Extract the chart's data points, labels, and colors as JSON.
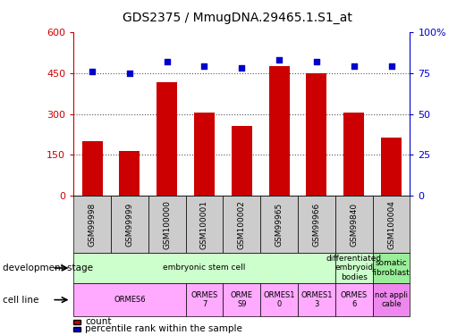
{
  "title": "GDS2375 / MmugDNA.29465.1.S1_at",
  "samples": [
    "GSM99998",
    "GSM99999",
    "GSM100000",
    "GSM100001",
    "GSM100002",
    "GSM99965",
    "GSM99966",
    "GSM99840",
    "GSM100004"
  ],
  "counts": [
    200,
    165,
    415,
    305,
    255,
    475,
    450,
    305,
    215
  ],
  "percentiles": [
    76,
    75,
    82,
    79,
    78,
    83,
    82,
    79,
    79
  ],
  "bar_color": "#cc0000",
  "dot_color": "#0000cc",
  "ylim_left": [
    0,
    600
  ],
  "ylim_right": [
    0,
    100
  ],
  "yticks_left": [
    0,
    150,
    300,
    450,
    600
  ],
  "yticks_right": [
    0,
    25,
    50,
    75,
    100
  ],
  "yticklabels_left": [
    "0",
    "150",
    "300",
    "450",
    "600"
  ],
  "yticklabels_right": [
    "0",
    "25",
    "50",
    "75",
    "100%"
  ],
  "dev_stage_groups": [
    {
      "label": "embryonic stem cell",
      "start": 0,
      "end": 7,
      "color": "#ccffcc"
    },
    {
      "label": "differentiated\nembryoid\nbodies",
      "start": 7,
      "end": 8,
      "color": "#ccffcc"
    },
    {
      "label": "somatic\nfibroblast",
      "start": 8,
      "end": 9,
      "color": "#99ee99"
    }
  ],
  "cell_line_groups": [
    {
      "label": "ORMES6",
      "start": 0,
      "end": 3,
      "color": "#ffaaff"
    },
    {
      "label": "ORMES\n7",
      "start": 3,
      "end": 4,
      "color": "#ffaaff"
    },
    {
      "label": "ORME\nS9",
      "start": 4,
      "end": 5,
      "color": "#ffaaff"
    },
    {
      "label": "ORMES1\n0",
      "start": 5,
      "end": 6,
      "color": "#ffaaff"
    },
    {
      "label": "ORMES1\n3",
      "start": 6,
      "end": 7,
      "color": "#ffaaff"
    },
    {
      "label": "ORMES\n6",
      "start": 7,
      "end": 8,
      "color": "#ffaaff"
    },
    {
      "label": "not appli\ncable",
      "start": 8,
      "end": 9,
      "color": "#ee88ee"
    }
  ],
  "dev_stage_label": "development stage",
  "cell_line_label": "cell line",
  "legend_count": "count",
  "legend_pct": "percentile rank within the sample",
  "bg_color": "#ffffff",
  "tick_color_left": "#cc0000",
  "tick_color_right": "#0000cc",
  "grid_color": "#555555",
  "xlabel_bg": "#cccccc"
}
